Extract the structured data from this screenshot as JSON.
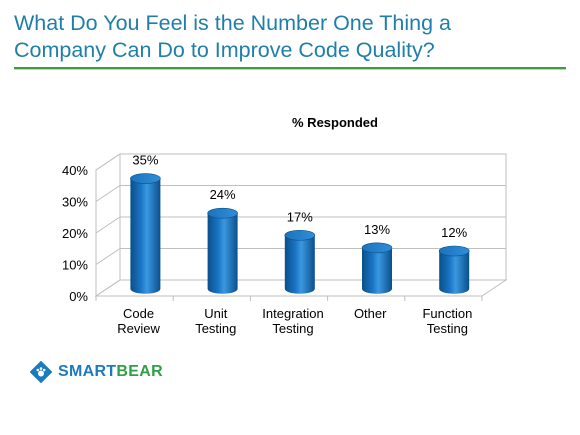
{
  "slide": {
    "title_line1": "What Do You Feel is the Number One Thing a",
    "title_line2": "Company Can Do to Improve Code Quality?"
  },
  "logo": {
    "part1": "SMART",
    "part2": "BEAR"
  },
  "colors": {
    "title": "#1f7fa8",
    "rule": "#3f9a40",
    "bar_dark": "#0a4f8a",
    "bar_mid": "#1a74c4",
    "bar_light": "#3a98e0"
  },
  "chart_data": {
    "type": "bar",
    "title": "% Responded",
    "categories": [
      [
        "Code",
        "Review"
      ],
      [
        "Unit",
        "Testing"
      ],
      [
        "Integration",
        "Testing"
      ],
      [
        "Other"
      ],
      [
        "Function",
        "Testing"
      ]
    ],
    "values": [
      35,
      24,
      17,
      13,
      12
    ],
    "data_labels": [
      "35%",
      "24%",
      "17%",
      "13%",
      "12%"
    ],
    "ylim": [
      0,
      40
    ],
    "yticks": [
      0,
      10,
      20,
      30,
      40
    ],
    "ytick_labels": [
      "0%",
      "10%",
      "20%",
      "30%",
      "40%"
    ],
    "grid": true,
    "style": "3d-cylinder"
  }
}
